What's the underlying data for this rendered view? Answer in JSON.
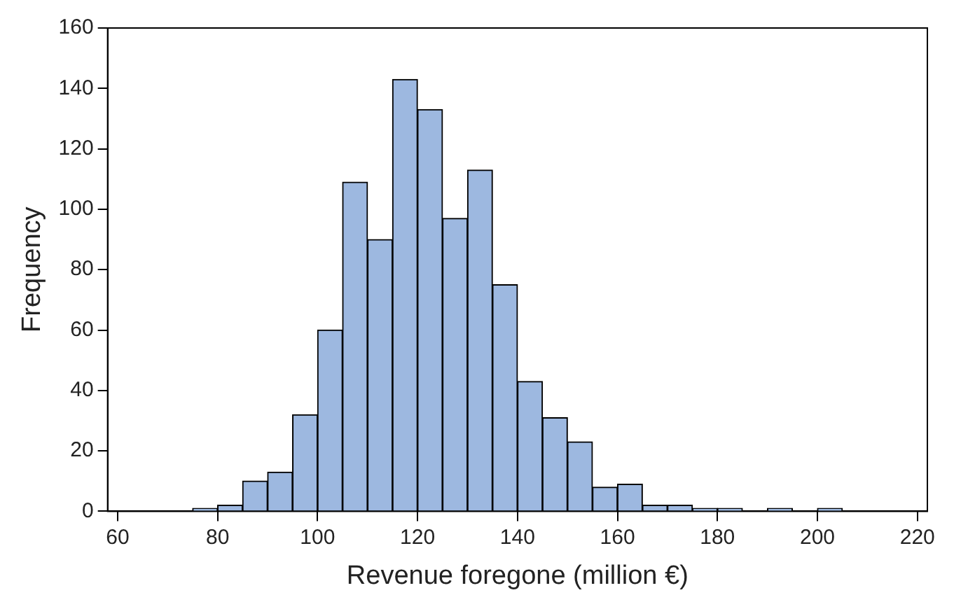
{
  "chart_data": {
    "type": "histogram",
    "xlabel": "Revenue foregone (million €)",
    "ylabel": "Frequency",
    "bins": [
      75,
      80,
      85,
      90,
      95,
      100,
      105,
      110,
      115,
      120,
      125,
      130,
      135,
      140,
      145,
      150,
      155,
      160,
      165,
      170,
      175,
      180,
      185,
      190,
      195,
      200,
      205
    ],
    "values": [
      1,
      2,
      10,
      13,
      32,
      60,
      109,
      90,
      143,
      133,
      97,
      113,
      75,
      43,
      31,
      23,
      8,
      9,
      2,
      2,
      1,
      1,
      0,
      1,
      0,
      1
    ],
    "color": "#9db8e0",
    "xlim": [
      58,
      222
    ],
    "xticks": [
      60,
      80,
      100,
      120,
      140,
      160,
      180,
      200,
      220
    ],
    "ylim": [
      0,
      160
    ],
    "yticks": [
      0,
      20,
      40,
      60,
      80,
      100,
      120,
      140,
      160
    ],
    "grid": false,
    "legend": false
  }
}
